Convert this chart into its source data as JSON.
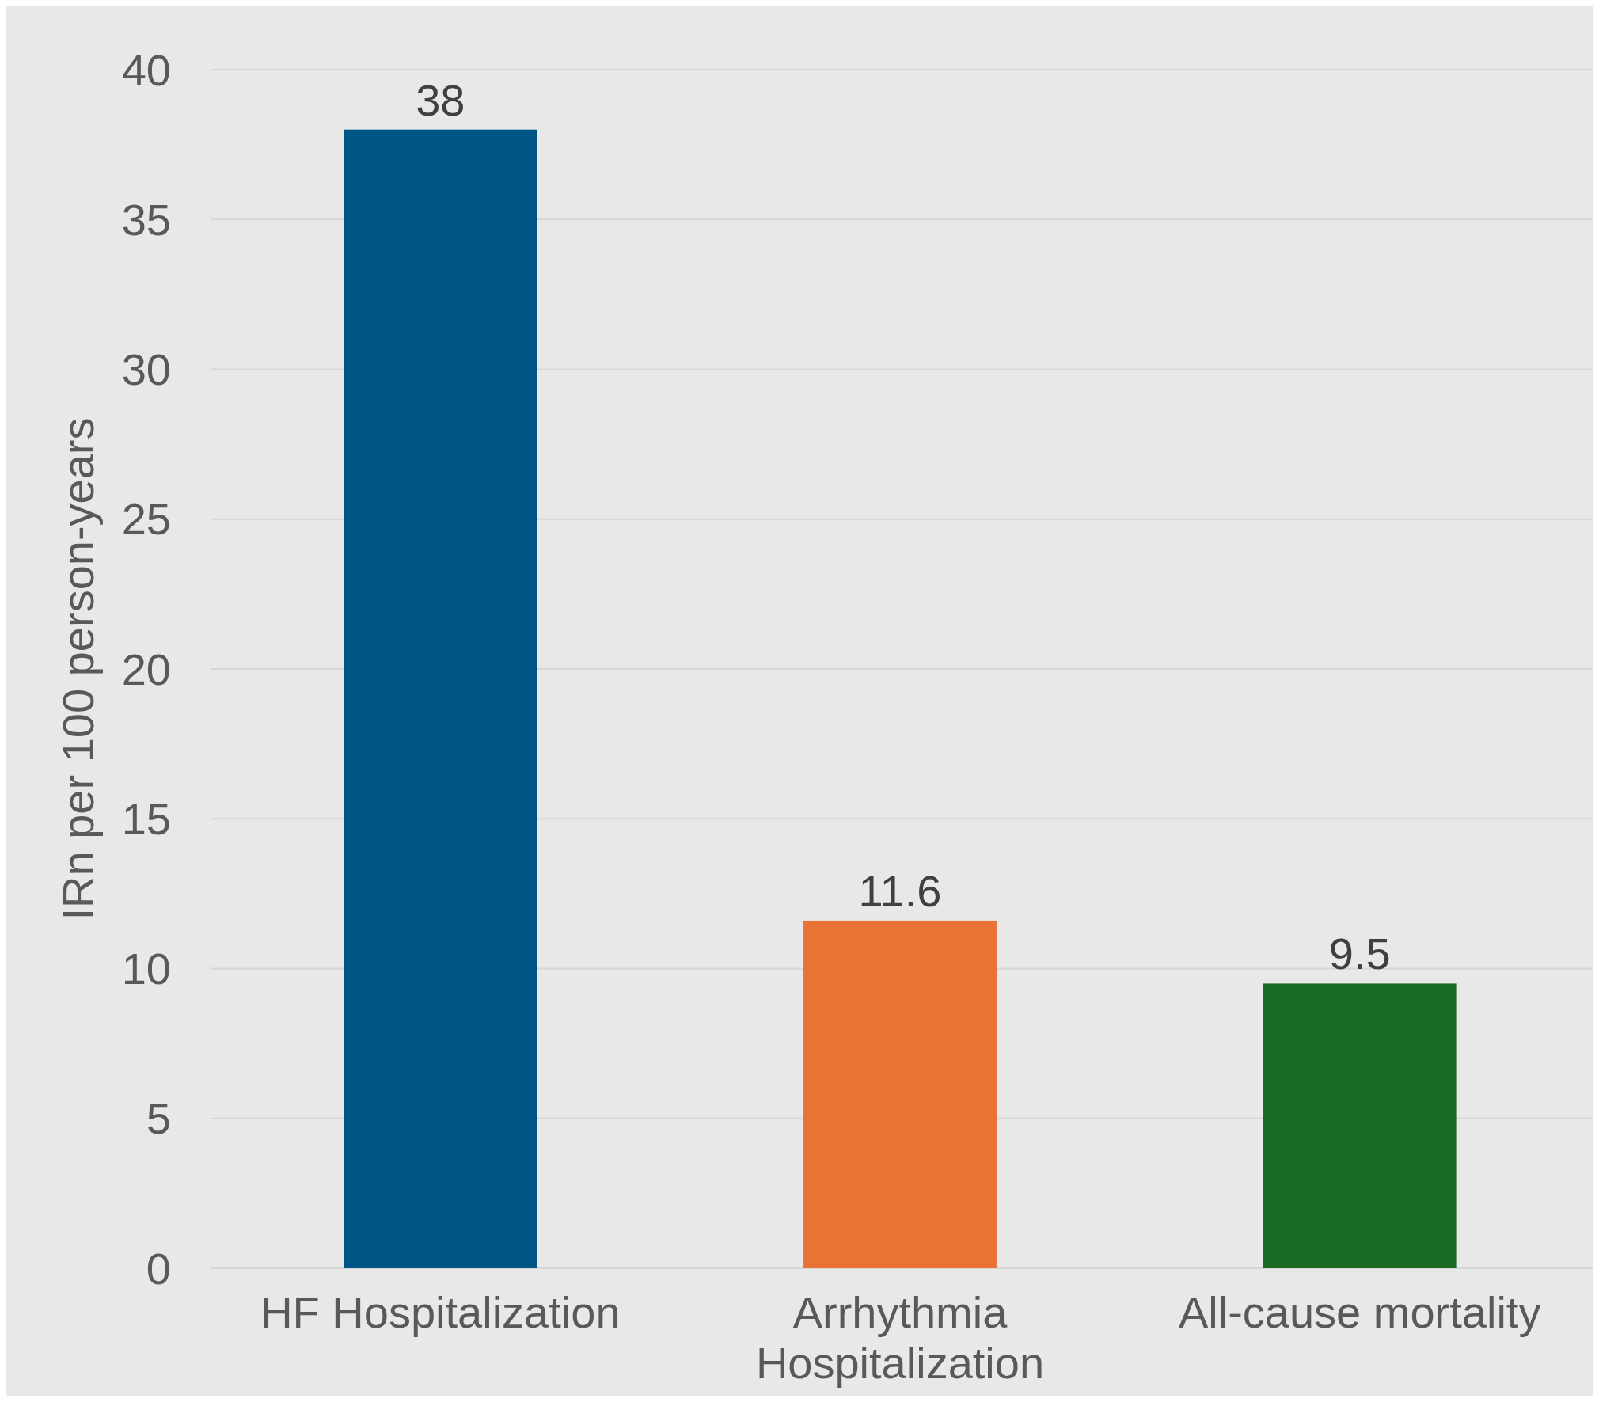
{
  "chart_data": {
    "type": "bar",
    "ylabel": "IRn per 100 person-years",
    "categories": [
      "HF Hospitalization",
      "Arrhythmia Hospitalization",
      "All-cause mortality"
    ],
    "values": [
      38,
      11.6,
      9.5
    ],
    "colors": [
      "#005587",
      "#e87334",
      "#1a6b24"
    ],
    "ylim": [
      0,
      40
    ],
    "yticks": [
      0,
      5,
      10,
      15,
      20,
      25,
      30,
      35,
      40
    ],
    "grid": "y",
    "data_labels": true
  }
}
